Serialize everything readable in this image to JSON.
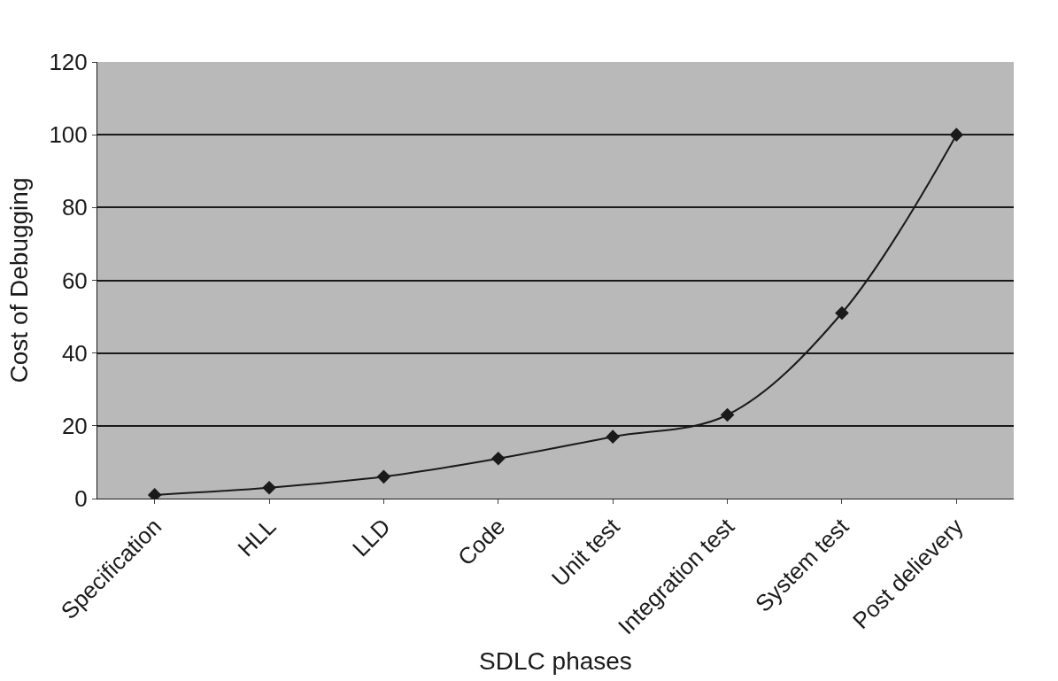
{
  "chart_data": {
    "type": "line",
    "xlabel": "SDLC phases",
    "ylabel": "Cost of Debugging",
    "categories": [
      "Specification",
      "HLL",
      "LLD",
      "Code",
      "Unit test",
      "Integration test",
      "System test",
      "Post delievery"
    ],
    "series": [
      {
        "color": "#1a1a1a",
        "values": [
          1,
          3,
          6,
          11,
          17,
          23,
          51,
          100
        ]
      }
    ],
    "ylim": [
      0,
      120
    ],
    "yticks": [
      0,
      20,
      40,
      60,
      80,
      100,
      120
    ],
    "grid": "y",
    "marker": "diamond",
    "line_style": "solid",
    "legend": false
  }
}
